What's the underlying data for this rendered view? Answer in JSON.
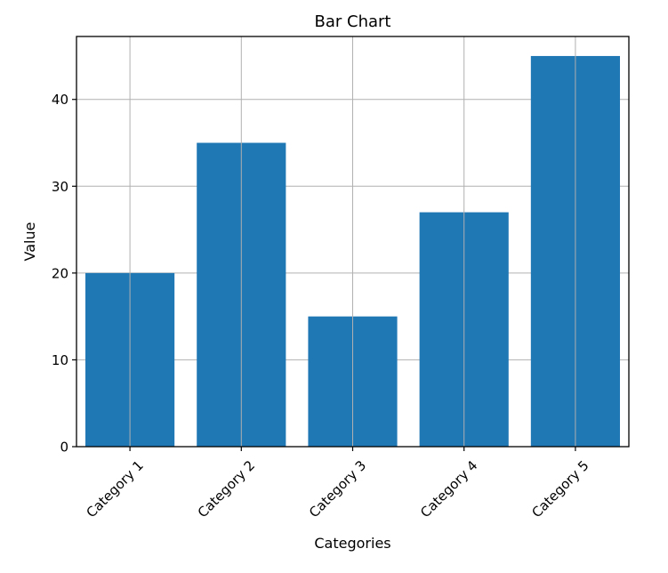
{
  "chart_data": {
    "type": "bar",
    "title": "Bar Chart",
    "xlabel": "Categories",
    "ylabel": "Value",
    "categories": [
      "Category 1",
      "Category 2",
      "Category 3",
      "Category 4",
      "Category 5"
    ],
    "values": [
      20,
      35,
      15,
      27,
      45
    ],
    "ylim": [
      0,
      47.25
    ],
    "yticks": [
      0,
      10,
      20,
      30,
      40
    ],
    "grid": true,
    "bar_color": "#1f77b4",
    "grid_color": "#b0b0b0",
    "xtick_rotation": 45
  }
}
